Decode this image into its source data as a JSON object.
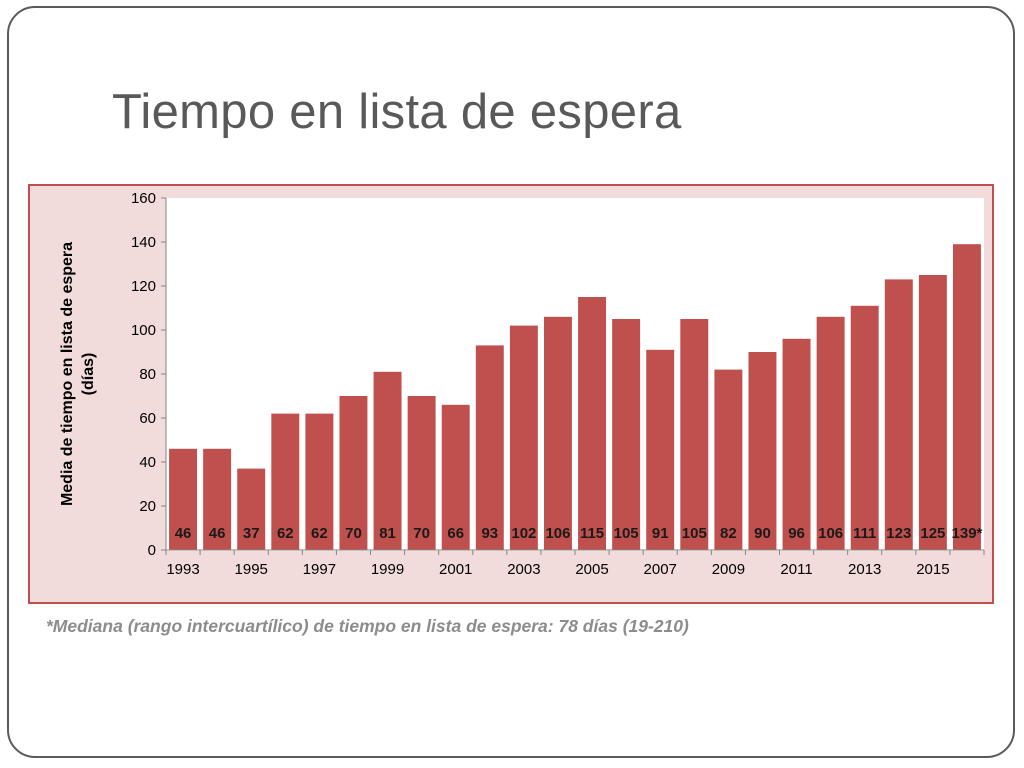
{
  "slide": {
    "title": "Tiempo en lista de espera",
    "footnote": "*Mediana (rango intercuartílico) de tiempo en lista de espera: 78 días (19-210)"
  },
  "colors": {
    "bar": "#c0504d",
    "panel_background": "#f2dcdb",
    "panel_border": "#c0504d",
    "title_text": "#595959",
    "footnote_text": "#8c8c8c"
  },
  "chart_data": {
    "type": "bar",
    "ylabel": "Media de tiempo en lista de espera (días)",
    "ylabel_lines": [
      "Media de tiempo en lista de espera",
      "(días)"
    ],
    "ylim": [
      0,
      160
    ],
    "yticks": [
      "0",
      "20",
      "40",
      "60",
      "80",
      "100",
      "120",
      "140",
      "160"
    ],
    "grid": false,
    "legend": "none",
    "categories": [
      "1993",
      "1994",
      "1995",
      "1996",
      "1997",
      "1998",
      "1999",
      "2000",
      "2001",
      "2002",
      "2003",
      "2004",
      "2005",
      "2006",
      "2007",
      "2008",
      "2009",
      "2010",
      "2011",
      "2012",
      "2013",
      "2014",
      "2015",
      "2016"
    ],
    "x_tick_labels": [
      "1993",
      "",
      "1995",
      "",
      "1997",
      "",
      "1999",
      "",
      "2001",
      "",
      "2003",
      "",
      "2005",
      "",
      "2007",
      "",
      "2009",
      "",
      "2011",
      "",
      "2013",
      "",
      "2015",
      ""
    ],
    "values": [
      46,
      46,
      37,
      62,
      62,
      70,
      81,
      70,
      66,
      93,
      102,
      106,
      115,
      105,
      91,
      105,
      82,
      90,
      96,
      106,
      111,
      123,
      125,
      139
    ],
    "data_labels": [
      "46",
      "46",
      "37",
      "62",
      "62",
      "70",
      "81",
      "70",
      "66",
      "93",
      "102",
      "106",
      "115",
      "105",
      "91",
      "105",
      "82",
      "90",
      "96",
      "106",
      "111",
      "123",
      "125",
      "139*"
    ]
  }
}
